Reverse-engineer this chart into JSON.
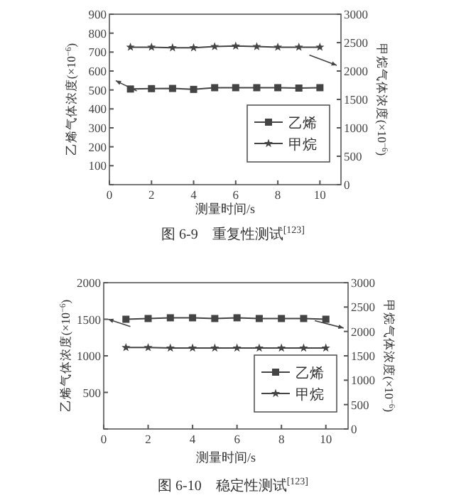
{
  "chart_data": [
    {
      "type": "line",
      "title": "图 6-9　重复性测试$^{[123]}$",
      "xlabel": "测量时间/s",
      "ylabel": "乙烯气体浓度(×10$^{−6}$)",
      "y2label": "甲烷气体浓度(×10$^{−6}$)",
      "x": [
        1,
        2,
        3,
        4,
        5,
        6,
        7,
        8,
        9,
        10
      ],
      "xlim": [
        0,
        11
      ],
      "xticks": [
        0,
        2,
        4,
        6,
        8,
        10
      ],
      "ylim": [
        0,
        900
      ],
      "yticks": [
        {
          "value": 0,
          "label": null
        },
        100,
        200,
        300,
        400,
        500,
        600,
        700,
        800,
        900
      ],
      "y2lim": [
        0,
        3000
      ],
      "y2ticks": [
        0,
        500,
        1000,
        1500,
        2000,
        2500,
        3000
      ],
      "legend": "bottom right",
      "grid": false,
      "series": [
        {
          "name": "乙烯",
          "color": "#444444",
          "marker": "square",
          "values": [
            505,
            507,
            508,
            503,
            512,
            512,
            512,
            512,
            510,
            512
          ]
        },
        {
          "name": "甲烷",
          "color": "#444444",
          "marker": "star",
          "axis": "y2",
          "values": [
            2420,
            2420,
            2410,
            2410,
            2430,
            2440,
            2430,
            2420,
            2420,
            2420
          ]
        }
      ]
    },
    {
      "type": "line",
      "title": "图 6-10　稳定性测试$^{[123]}$",
      "xlabel": "测量时间/s",
      "ylabel": "乙烯气体浓度(×10$^{−6}$)",
      "y2label": "甲烷气体浓度(×10$^{−6}$)",
      "x": [
        1,
        2,
        3,
        4,
        5,
        6,
        7,
        8,
        9,
        10
      ],
      "xlim": [
        0,
        11
      ],
      "xticks": [
        0,
        2,
        4,
        6,
        8,
        10
      ],
      "ylim": [
        0,
        2000
      ],
      "yticks": [
        {
          "value": 0,
          "label": null
        },
        500,
        1000,
        1500,
        2000
      ],
      "y2lim": [
        0,
        3000
      ],
      "y2ticks": [
        0,
        500,
        1000,
        1500,
        2000,
        2500,
        3000
      ],
      "legend": "bottom right",
      "grid": false,
      "series": [
        {
          "name": "乙烯",
          "color": "#444444",
          "marker": "square",
          "values": [
            1500,
            1510,
            1520,
            1520,
            1510,
            1520,
            1510,
            1510,
            1510,
            1500
          ]
        },
        {
          "name": "甲烷",
          "color": "#444444",
          "marker": "star",
          "axis": "y2",
          "values": [
            1670,
            1670,
            1660,
            1660,
            1660,
            1660,
            1660,
            1660,
            1660,
            1660
          ]
        }
      ]
    }
  ]
}
